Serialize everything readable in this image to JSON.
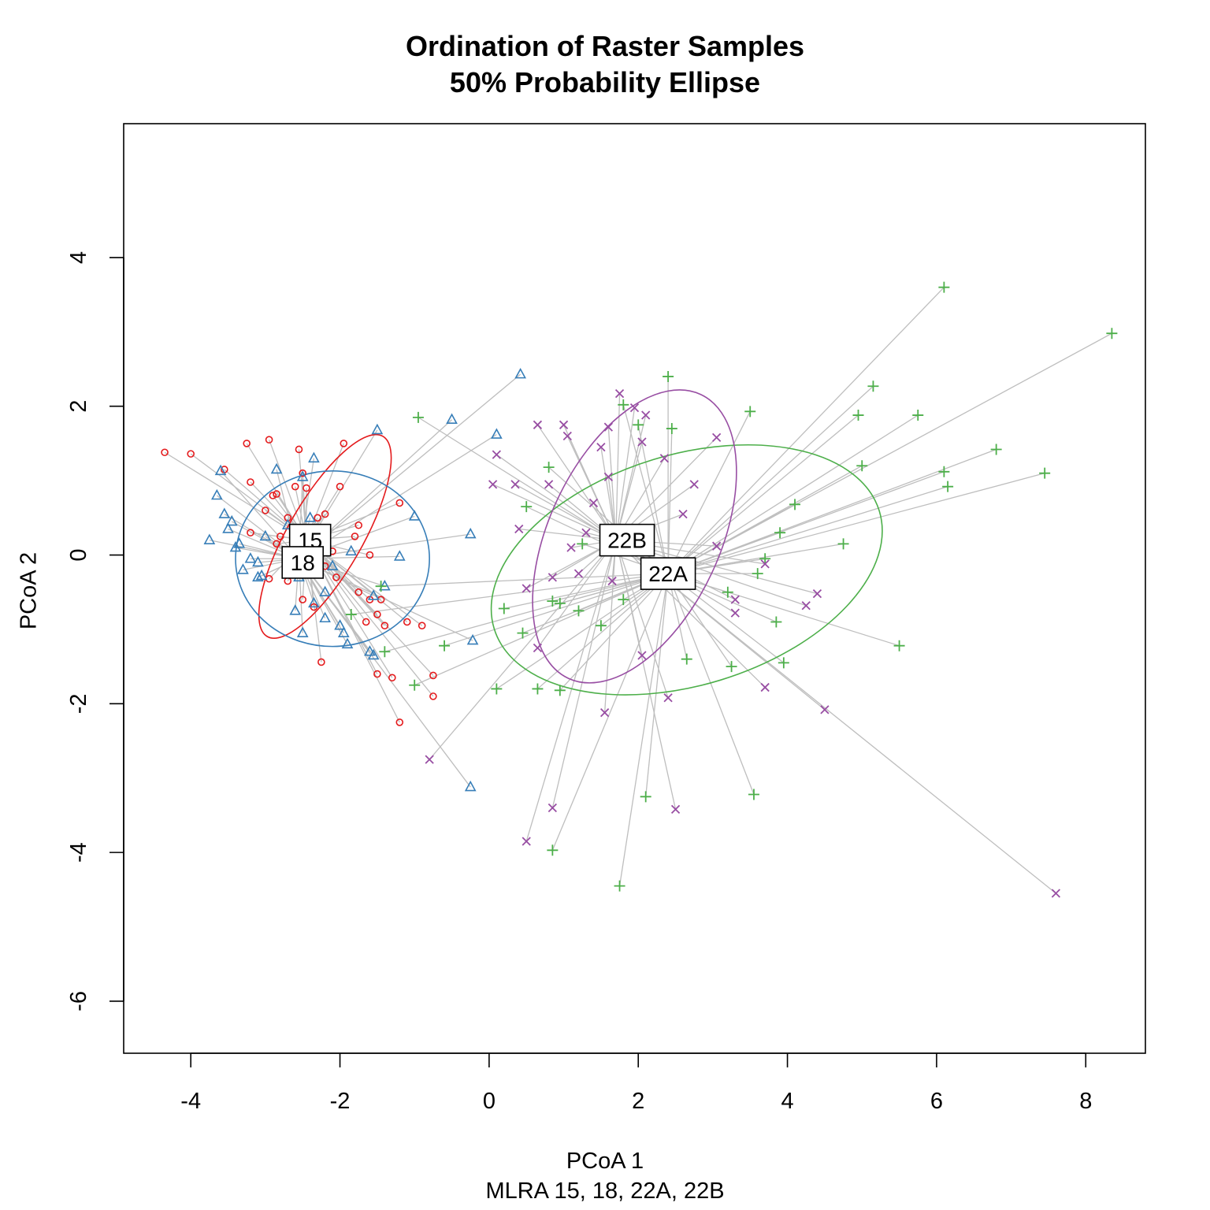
{
  "chart_data": {
    "type": "scatter",
    "title": "Ordination of Raster Samples",
    "subtitle": "50% Probability Ellipse",
    "xlabel": "PCoA 1",
    "xsublabel": "MLRA 15, 18, 22A, 22B",
    "ylabel": "PCoA 2",
    "xlim": [
      -4.9,
      8.8
    ],
    "ylim": [
      -6.7,
      5.8
    ],
    "xticks": [
      "-4",
      "-2",
      "0",
      "2",
      "4",
      "6",
      "8"
    ],
    "yticks": [
      "-6",
      "-4",
      "-2",
      "0",
      "2",
      "4"
    ],
    "grid": false,
    "legend": "none",
    "spider_color": "#bebebe",
    "series": [
      {
        "name": "15",
        "marker": "circle",
        "color": "#e41a1c",
        "centroid": [
          -2.45,
          0.2
        ],
        "label_position": [
          -2.4,
          0.2
        ],
        "ellipse": {
          "center": [
            -2.2,
            0.25
          ],
          "rx": 1.55,
          "ry": 0.5,
          "angle_deg": -60
        },
        "points": [
          [
            -4.35,
            1.38
          ],
          [
            -4.0,
            1.36
          ],
          [
            -3.55,
            1.15
          ],
          [
            -3.25,
            1.5
          ],
          [
            -3.2,
            0.98
          ],
          [
            -2.95,
            1.55
          ],
          [
            -2.9,
            0.8
          ],
          [
            -2.85,
            0.82
          ],
          [
            -2.6,
            0.92
          ],
          [
            -2.55,
            1.42
          ],
          [
            -2.5,
            1.1
          ],
          [
            -2.45,
            0.9
          ],
          [
            -2.3,
            0.5
          ],
          [
            -2.2,
            0.55
          ],
          [
            -2.0,
            0.92
          ],
          [
            -1.95,
            1.5
          ],
          [
            -1.8,
            0.25
          ],
          [
            -1.75,
            0.4
          ],
          [
            -1.6,
            0.0
          ],
          [
            -1.2,
            0.7
          ],
          [
            -2.1,
            0.05
          ],
          [
            -2.3,
            -0.2
          ],
          [
            -2.2,
            -0.15
          ],
          [
            -2.05,
            -0.3
          ],
          [
            -2.5,
            -0.6
          ],
          [
            -2.35,
            -0.7
          ],
          [
            -1.75,
            -0.5
          ],
          [
            -1.6,
            -0.6
          ],
          [
            -1.45,
            -0.6
          ],
          [
            -1.5,
            -0.8
          ],
          [
            -1.65,
            -0.9
          ],
          [
            -1.4,
            -0.95
          ],
          [
            -1.1,
            -0.9
          ],
          [
            -0.9,
            -0.95
          ],
          [
            -1.5,
            -1.6
          ],
          [
            -1.3,
            -1.65
          ],
          [
            -0.75,
            -1.62
          ],
          [
            -0.75,
            -1.9
          ],
          [
            -1.2,
            -2.25
          ],
          [
            -2.25,
            -1.44
          ],
          [
            -3.2,
            0.3
          ],
          [
            -2.95,
            -0.32
          ],
          [
            -2.7,
            -0.35
          ],
          [
            -2.8,
            0.25
          ],
          [
            -2.85,
            0.15
          ],
          [
            -3.0,
            0.6
          ],
          [
            -2.7,
            0.5
          ]
        ]
      },
      {
        "name": "18",
        "marker": "triangle",
        "color": "#377eb8",
        "centroid": [
          -2.55,
          -0.05
        ],
        "label_position": [
          -2.5,
          -0.1
        ],
        "ellipse": {
          "center": [
            -2.1,
            -0.05
          ],
          "rx": 1.3,
          "ry": 1.18,
          "angle_deg": 0
        },
        "points": [
          [
            -3.75,
            0.2
          ],
          [
            -3.65,
            0.8
          ],
          [
            -3.6,
            1.13
          ],
          [
            -3.55,
            0.55
          ],
          [
            -3.5,
            0.35
          ],
          [
            -3.45,
            0.45
          ],
          [
            -3.35,
            0.15
          ],
          [
            -3.3,
            -0.2
          ],
          [
            -3.1,
            -0.1
          ],
          [
            -3.1,
            -0.3
          ],
          [
            -3.05,
            -0.28
          ],
          [
            -3.0,
            0.25
          ],
          [
            -2.85,
            1.15
          ],
          [
            -2.7,
            0.4
          ],
          [
            -2.6,
            -0.75
          ],
          [
            -2.5,
            1.05
          ],
          [
            -2.35,
            1.3
          ],
          [
            -2.4,
            0.5
          ],
          [
            -2.55,
            -0.3
          ],
          [
            -2.5,
            -1.05
          ],
          [
            -2.35,
            -0.65
          ],
          [
            -2.2,
            -0.5
          ],
          [
            -2.2,
            -0.85
          ],
          [
            -2.1,
            -0.15
          ],
          [
            -2.0,
            -0.95
          ],
          [
            -1.95,
            -1.05
          ],
          [
            -1.9,
            -1.2
          ],
          [
            -1.85,
            0.05
          ],
          [
            -1.6,
            -1.3
          ],
          [
            -1.55,
            -0.55
          ],
          [
            -1.55,
            -1.35
          ],
          [
            -1.5,
            1.68
          ],
          [
            -1.4,
            -0.42
          ],
          [
            -1.2,
            -0.02
          ],
          [
            -1.0,
            0.52
          ],
          [
            -0.5,
            1.82
          ],
          [
            -0.25,
            0.28
          ],
          [
            -0.22,
            -1.15
          ],
          [
            -0.25,
            -3.12
          ],
          [
            0.1,
            1.62
          ],
          [
            0.42,
            2.43
          ],
          [
            -3.4,
            0.1
          ],
          [
            -3.2,
            -0.05
          ]
        ]
      },
      {
        "name": "22A",
        "marker": "plus",
        "color": "#4daf4a",
        "centroid": [
          2.4,
          -0.25
        ],
        "label_position": [
          2.4,
          -0.25
        ],
        "ellipse": {
          "center": [
            2.65,
            -0.2
          ],
          "rx": 2.7,
          "ry": 1.55,
          "angle_deg": -17
        },
        "points": [
          [
            -1.45,
            -0.42
          ],
          [
            -1.85,
            -0.8
          ],
          [
            -1.4,
            -1.3
          ],
          [
            -1.0,
            -1.75
          ],
          [
            -0.95,
            1.85
          ],
          [
            -0.6,
            -1.22
          ],
          [
            0.2,
            -0.72
          ],
          [
            0.1,
            -1.8
          ],
          [
            0.45,
            -1.05
          ],
          [
            0.65,
            -1.8
          ],
          [
            0.85,
            -0.62
          ],
          [
            0.95,
            -0.65
          ],
          [
            0.95,
            -1.82
          ],
          [
            1.2,
            -0.75
          ],
          [
            1.5,
            -0.95
          ],
          [
            1.25,
            0.15
          ],
          [
            1.55,
            0.2
          ],
          [
            1.8,
            -0.6
          ],
          [
            1.8,
            2.02
          ],
          [
            2.0,
            1.75
          ],
          [
            2.4,
            2.4
          ],
          [
            2.45,
            1.7
          ],
          [
            2.65,
            -1.4
          ],
          [
            3.2,
            -0.5
          ],
          [
            3.25,
            -1.5
          ],
          [
            3.5,
            1.93
          ],
          [
            3.6,
            -0.25
          ],
          [
            3.7,
            -0.05
          ],
          [
            3.9,
            0.3
          ],
          [
            4.1,
            0.68
          ],
          [
            3.85,
            -0.9
          ],
          [
            3.95,
            -1.45
          ],
          [
            4.75,
            0.15
          ],
          [
            5.0,
            1.2
          ],
          [
            4.95,
            1.88
          ],
          [
            5.15,
            2.27
          ],
          [
            5.5,
            -1.22
          ],
          [
            5.75,
            1.88
          ],
          [
            6.1,
            1.12
          ],
          [
            6.15,
            0.92
          ],
          [
            6.1,
            3.6
          ],
          [
            6.8,
            1.42
          ],
          [
            7.45,
            1.1
          ],
          [
            8.35,
            2.98
          ],
          [
            3.55,
            -3.22
          ],
          [
            2.1,
            -3.25
          ],
          [
            1.75,
            -4.45
          ],
          [
            0.85,
            -3.97
          ],
          [
            0.8,
            1.18
          ],
          [
            0.5,
            0.65
          ]
        ]
      },
      {
        "name": "22B",
        "marker": "x",
        "color": "#984ea3",
        "centroid": [
          1.7,
          0.2
        ],
        "label_position": [
          1.85,
          0.2
        ],
        "ellipse": {
          "center": [
            1.95,
            0.25
          ],
          "rx": 2.1,
          "ry": 1.15,
          "angle_deg": -65
        },
        "points": [
          [
            -0.8,
            -2.75
          ],
          [
            0.05,
            0.95
          ],
          [
            0.1,
            1.35
          ],
          [
            0.35,
            0.95
          ],
          [
            0.4,
            0.35
          ],
          [
            0.5,
            -0.45
          ],
          [
            0.65,
            1.75
          ],
          [
            0.65,
            -1.25
          ],
          [
            0.8,
            0.95
          ],
          [
            0.85,
            -3.4
          ],
          [
            0.5,
            -3.85
          ],
          [
            1.0,
            1.75
          ],
          [
            1.05,
            1.6
          ],
          [
            1.1,
            0.1
          ],
          [
            1.3,
            0.3
          ],
          [
            1.4,
            0.7
          ],
          [
            1.5,
            1.45
          ],
          [
            1.6,
            1.72
          ],
          [
            1.6,
            1.05
          ],
          [
            1.55,
            -2.12
          ],
          [
            1.65,
            -0.35
          ],
          [
            1.75,
            2.17
          ],
          [
            1.95,
            1.98
          ],
          [
            2.05,
            1.52
          ],
          [
            2.1,
            1.88
          ],
          [
            2.05,
            -1.35
          ],
          [
            2.35,
            1.3
          ],
          [
            2.4,
            -1.92
          ],
          [
            2.5,
            -3.42
          ],
          [
            2.6,
            0.55
          ],
          [
            2.75,
            0.95
          ],
          [
            3.05,
            1.58
          ],
          [
            3.05,
            0.12
          ],
          [
            3.3,
            -0.6
          ],
          [
            3.3,
            -0.78
          ],
          [
            3.7,
            -0.12
          ],
          [
            3.7,
            -1.78
          ],
          [
            4.25,
            -0.68
          ],
          [
            4.4,
            -0.52
          ],
          [
            4.5,
            -2.08
          ],
          [
            7.6,
            -4.55
          ],
          [
            1.2,
            -0.25
          ],
          [
            0.85,
            -0.3
          ]
        ]
      }
    ]
  }
}
